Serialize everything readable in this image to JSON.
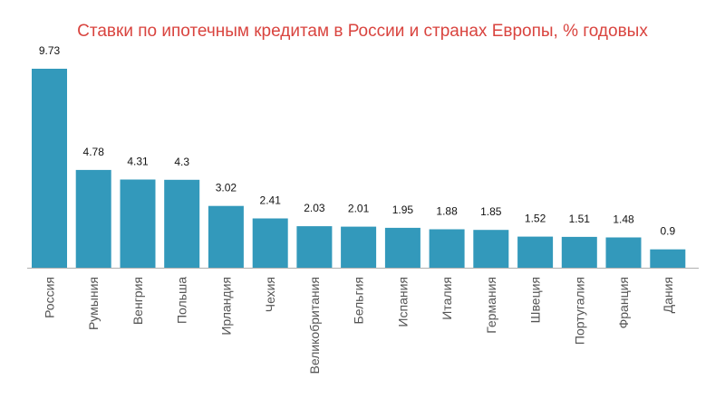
{
  "chart_data": {
    "type": "bar",
    "title": "Ставки по ипотечным кредитам в России и странах Европы, % годовых",
    "categories": [
      "Россия",
      "Румыния",
      "Венгрия",
      "Польша",
      "Ирландия",
      "Чехия",
      "Великобритания",
      "Бельгия",
      "Испания",
      "Италия",
      "Германия",
      "Швеция",
      "Португалия",
      "Франция",
      "Дания"
    ],
    "values": [
      9.73,
      4.78,
      4.31,
      4.3,
      3.02,
      2.41,
      2.03,
      2.01,
      1.95,
      1.88,
      1.85,
      1.52,
      1.51,
      1.48,
      0.9
    ],
    "value_labels": [
      "9.73",
      "4.78",
      "4.31",
      "4.3",
      "3.02",
      "2.41",
      "2.03",
      "2.01",
      "1.95",
      "1.88",
      "1.85",
      "1.52",
      "1.51",
      "1.48",
      "0.9"
    ],
    "ylim": [
      0,
      9.73
    ],
    "grid": false,
    "legend": "none"
  },
  "colors": {
    "bar": "#3399bb",
    "title": "#d9443f",
    "axis": "#b0b0b0"
  }
}
